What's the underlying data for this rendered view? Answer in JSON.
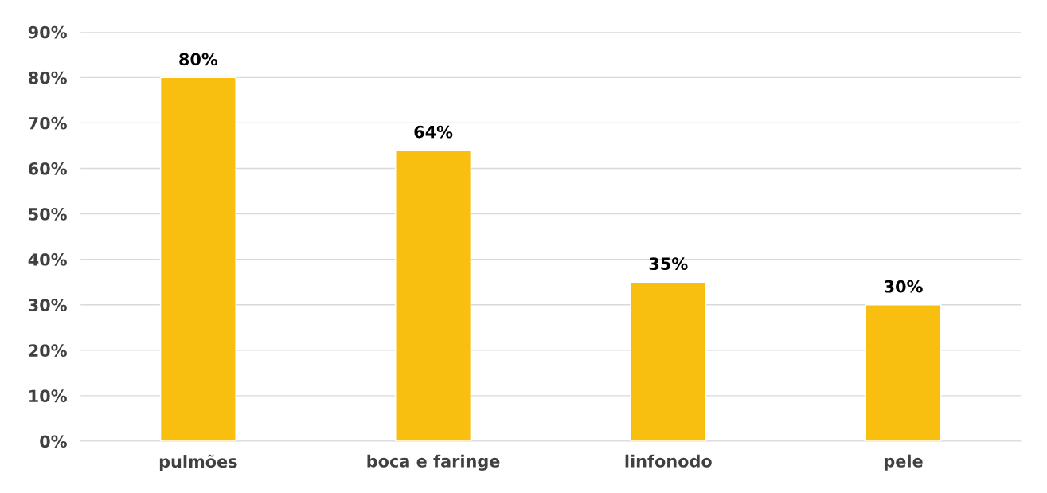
{
  "chart_data": {
    "type": "bar",
    "categories": [
      "pulmões",
      "boca e faringe",
      "linfonodo",
      "pele"
    ],
    "values": [
      80,
      64,
      35,
      30
    ],
    "value_labels": [
      "80%",
      "64%",
      "35%",
      "30%"
    ],
    "color": "#f8be10",
    "ylim": [
      0,
      90
    ],
    "yticks": [
      {
        "value": 0,
        "label": "0%"
      },
      {
        "value": 10,
        "label": "10%"
      },
      {
        "value": 20,
        "label": "20%"
      },
      {
        "value": 30,
        "label": "30%"
      },
      {
        "value": 40,
        "label": "40%"
      },
      {
        "value": 50,
        "label": "50%"
      },
      {
        "value": 60,
        "label": "60%"
      },
      {
        "value": 70,
        "label": "70%"
      },
      {
        "value": 80,
        "label": "80%"
      },
      {
        "value": 90,
        "label": "90%"
      }
    ],
    "grid": "y"
  }
}
